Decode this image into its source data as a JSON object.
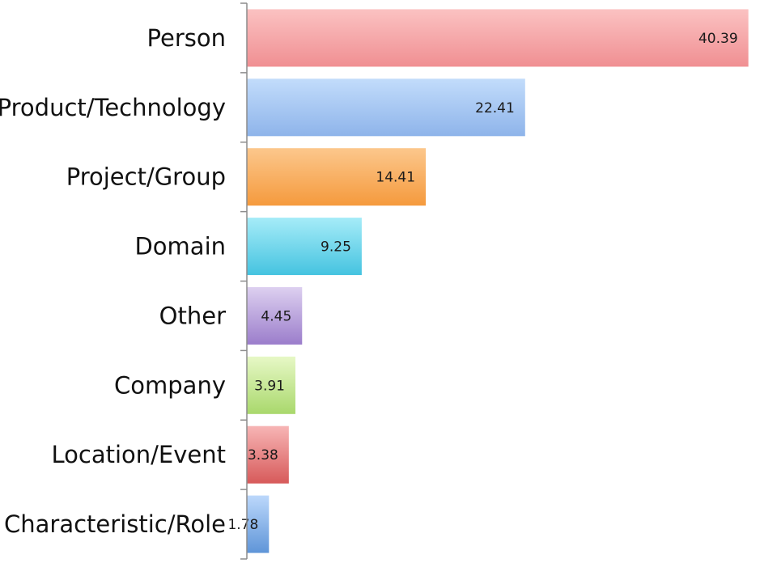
{
  "chart_data": {
    "type": "bar",
    "orientation": "horizontal",
    "title": "",
    "xlabel": "",
    "ylabel": "",
    "categories": [
      "Person",
      "Product/Technology",
      "Project/Group",
      "Domain",
      "Other",
      "Company",
      "Location/Event",
      "Characteristic/Role"
    ],
    "values": [
      40.39,
      22.41,
      14.41,
      9.25,
      4.45,
      3.91,
      3.38,
      1.78
    ],
    "value_labels": [
      "40.39",
      "22.41",
      "14.41",
      "9.25",
      "4.45",
      "3.91",
      "3.38",
      "1.78"
    ],
    "xlim": [
      0,
      41
    ],
    "grid": false,
    "legend": "none",
    "colors": [
      [
        "#fbc2c2",
        "#f08f92"
      ],
      [
        "#c2dcfb",
        "#8eb4ea"
      ],
      [
        "#fcc78c",
        "#f59a3d"
      ],
      [
        "#a6ecf8",
        "#45c3e0"
      ],
      [
        "#ddd0f0",
        "#9b7dcb"
      ],
      [
        "#e7f8c6",
        "#a9d86c"
      ],
      [
        "#f7b5b5",
        "#d75a5a"
      ],
      [
        "#bcd8fb",
        "#5f95d8"
      ]
    ]
  }
}
